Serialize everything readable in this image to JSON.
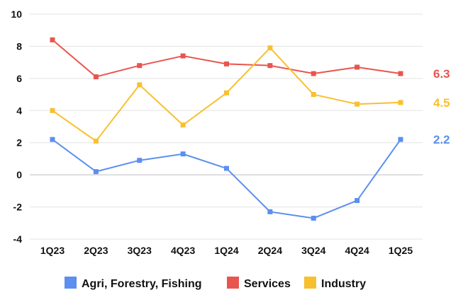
{
  "chart_data": {
    "type": "line",
    "title": "",
    "xlabel": "",
    "ylabel": "",
    "categories": [
      "1Q23",
      "2Q23",
      "3Q23",
      "4Q23",
      "1Q24",
      "2Q24",
      "3Q24",
      "4Q24",
      "1Q25"
    ],
    "ylim": [
      -4,
      10
    ],
    "yticks": [
      -4,
      -2,
      0,
      2,
      4,
      6,
      8,
      10
    ],
    "grid": true,
    "legend_position": "bottom",
    "series": [
      {
        "name": "Agri, Forestry, Fishing",
        "color": "#5b8ff0",
        "values": [
          2.2,
          0.2,
          0.9,
          1.3,
          0.4,
          -2.3,
          -2.7,
          -1.6,
          2.2
        ],
        "end_label": "2.2"
      },
      {
        "name": "Services",
        "color": "#e8554e",
        "values": [
          8.4,
          6.1,
          6.8,
          7.4,
          6.9,
          6.8,
          6.3,
          6.7,
          6.3
        ],
        "end_label": "6.3"
      },
      {
        "name": "Industry",
        "color": "#f8c02e",
        "values": [
          4.0,
          2.1,
          5.6,
          3.1,
          5.1,
          7.9,
          5.0,
          4.4,
          4.5
        ],
        "end_label": "4.5"
      }
    ]
  }
}
